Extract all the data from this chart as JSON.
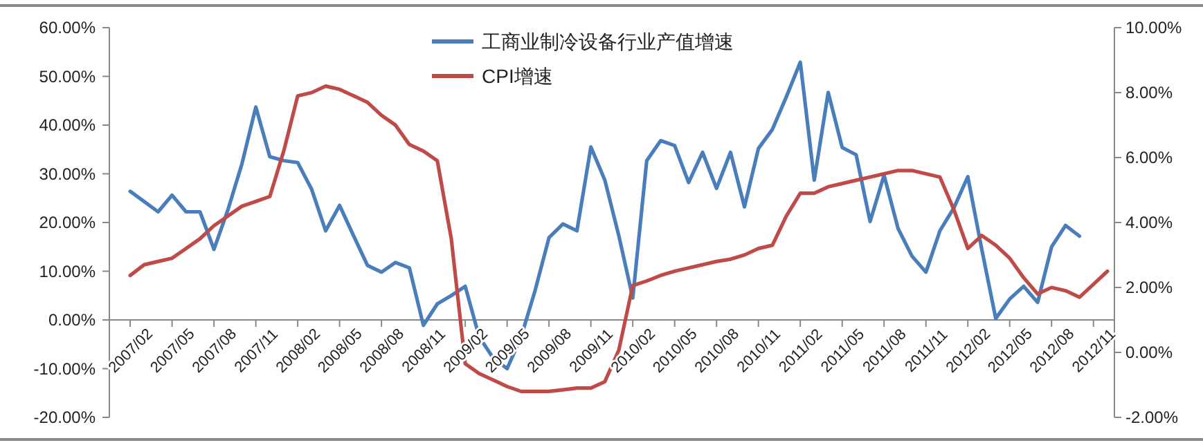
{
  "chart_data": {
    "type": "line",
    "categories": [
      "2007/02",
      null,
      null,
      "2007/05",
      null,
      null,
      "2007/08",
      null,
      null,
      "2007/11",
      null,
      null,
      "2008/02",
      null,
      null,
      "2008/05",
      null,
      null,
      "2008/08",
      null,
      null,
      "2008/11",
      null,
      null,
      "2009/02",
      null,
      null,
      "2009/05",
      null,
      null,
      "2009/08",
      null,
      null,
      "2009/11",
      null,
      null,
      "2010/02",
      null,
      null,
      "2010/05",
      null,
      null,
      "2010/08",
      null,
      null,
      "2010/11",
      null,
      null,
      "2011/02",
      null,
      null,
      "2011/05",
      null,
      null,
      "2011/08",
      null,
      null,
      "2011/11",
      null,
      null,
      "2012/02",
      null,
      null,
      "2012/05",
      null,
      null,
      "2012/08",
      null,
      null,
      "2012/11",
      null
    ],
    "series": [
      {
        "name": "工商业制冷设备行业产值增速",
        "color": "#4a7ebb",
        "values": [
          26.4,
          24.3,
          22.2,
          25.6,
          22.2,
          22.2,
          14.5,
          22.6,
          32,
          43.7,
          33.5,
          32.7,
          32.3,
          26.8,
          18.3,
          23.5,
          17.3,
          11.2,
          9.8,
          11.8,
          10.7,
          -1.1,
          3.3,
          5,
          6.9,
          -3.5,
          -7.8,
          -10,
          -3.5,
          6,
          16.9,
          19.7,
          18.3,
          35.5,
          28.7,
          17.3,
          4.5,
          32.7,
          36.8,
          35.8,
          28.2,
          34.4,
          27,
          34.4,
          23.2,
          35.2,
          39.1,
          45.8,
          52.9,
          28.7,
          46.7,
          35.4,
          33.9,
          20.2,
          29.7,
          18.8,
          13.1,
          9.8,
          18.3,
          23,
          29.4,
          14.5,
          0.3,
          4.3,
          6.9,
          3.6,
          15,
          19.4,
          17.2,
          null,
          null
        ]
      },
      {
        "name": "CPI增速",
        "color": "#be4b48",
        "axis": "y2",
        "values": [
          2.37,
          2.7,
          2.8,
          2.9,
          3.2,
          3.5,
          3.9,
          4.2,
          4.5,
          4.65,
          4.8,
          6.2,
          7.9,
          8,
          8.2,
          8.1,
          7.9,
          7.7,
          7.3,
          7,
          6.4,
          6.2,
          5.9,
          3.5,
          -0.35,
          -0.65,
          -0.85,
          -1.05,
          -1.2,
          -1.2,
          -1.2,
          -1.15,
          -1.1,
          -1.1,
          -0.9,
          0.07,
          2.06,
          2.2,
          2.37,
          2.5,
          2.6,
          2.7,
          2.8,
          2.87,
          3,
          3.2,
          3.3,
          4.2,
          4.9,
          4.9,
          5.1,
          5.2,
          5.3,
          5.4,
          5.5,
          5.6,
          5.6,
          5.5,
          5.4,
          4.4,
          3.2,
          3.6,
          3.3,
          2.9,
          2.3,
          1.8,
          2,
          1.9,
          1.7,
          2.1,
          2.5
        ]
      }
    ],
    "ylim": [
      -20,
      60
    ],
    "yticks": [
      {
        "value": -20,
        "label": "-20.00%"
      },
      {
        "value": -10,
        "label": "-10.00%"
      },
      {
        "value": 0,
        "label": "0.00%"
      },
      {
        "value": 10,
        "label": "10.00%"
      },
      {
        "value": 20,
        "label": "20.00%"
      },
      {
        "value": 30,
        "label": "30.00%"
      },
      {
        "value": 40,
        "label": "40.00%"
      },
      {
        "value": 50,
        "label": "50.00%"
      },
      {
        "value": 60,
        "label": "60.00%"
      }
    ],
    "y2lim": [
      -2,
      10
    ],
    "y2ticks": [
      {
        "value": -2,
        "label": "-2.00%"
      },
      {
        "value": 0,
        "label": "0.00%"
      },
      {
        "value": 2,
        "label": "2.00%"
      },
      {
        "value": 4,
        "label": "4.00%"
      },
      {
        "value": 6,
        "label": "6.00%"
      },
      {
        "value": 8,
        "label": "8.00%"
      },
      {
        "value": 10,
        "label": "10.00%"
      }
    ],
    "grid": false,
    "legend": "top",
    "marker": "none",
    "line_style": "solid"
  }
}
